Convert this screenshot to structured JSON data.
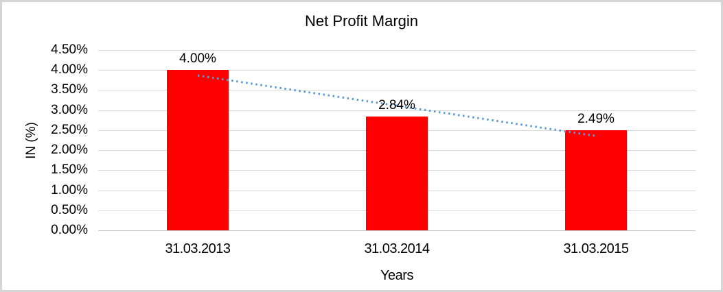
{
  "frame": {
    "background": "#ffffff",
    "border_color": "#d5d5d5"
  },
  "chart_data": {
    "type": "bar",
    "title": "Net Profit Margin",
    "categories": [
      "31.03.2013",
      "31.03.2014",
      "31.03.2015"
    ],
    "values": [
      4.0,
      2.84,
      2.49
    ],
    "data_labels": [
      "4.00%",
      "2.84%",
      "2.49%"
    ],
    "xlabel": "Years",
    "ylabel": "IN (%)",
    "ylim": [
      0,
      4.5
    ],
    "ytick_step": 0.5,
    "ytick_labels": [
      "4.50%",
      "4.00%",
      "3.50%",
      "3.00%",
      "2.50%",
      "2.00%",
      "1.50%",
      "1.00%",
      "0.50%",
      "0.00%"
    ],
    "grid": true,
    "legend": "none",
    "bar_color": "#ff0000",
    "gridline_color": "#d9d9d9",
    "axis_line_color": "#c6c6c6",
    "text_color": "#000000",
    "trendline": {
      "type": "linear",
      "style": "dotted",
      "color": "#5b9bd5"
    }
  }
}
